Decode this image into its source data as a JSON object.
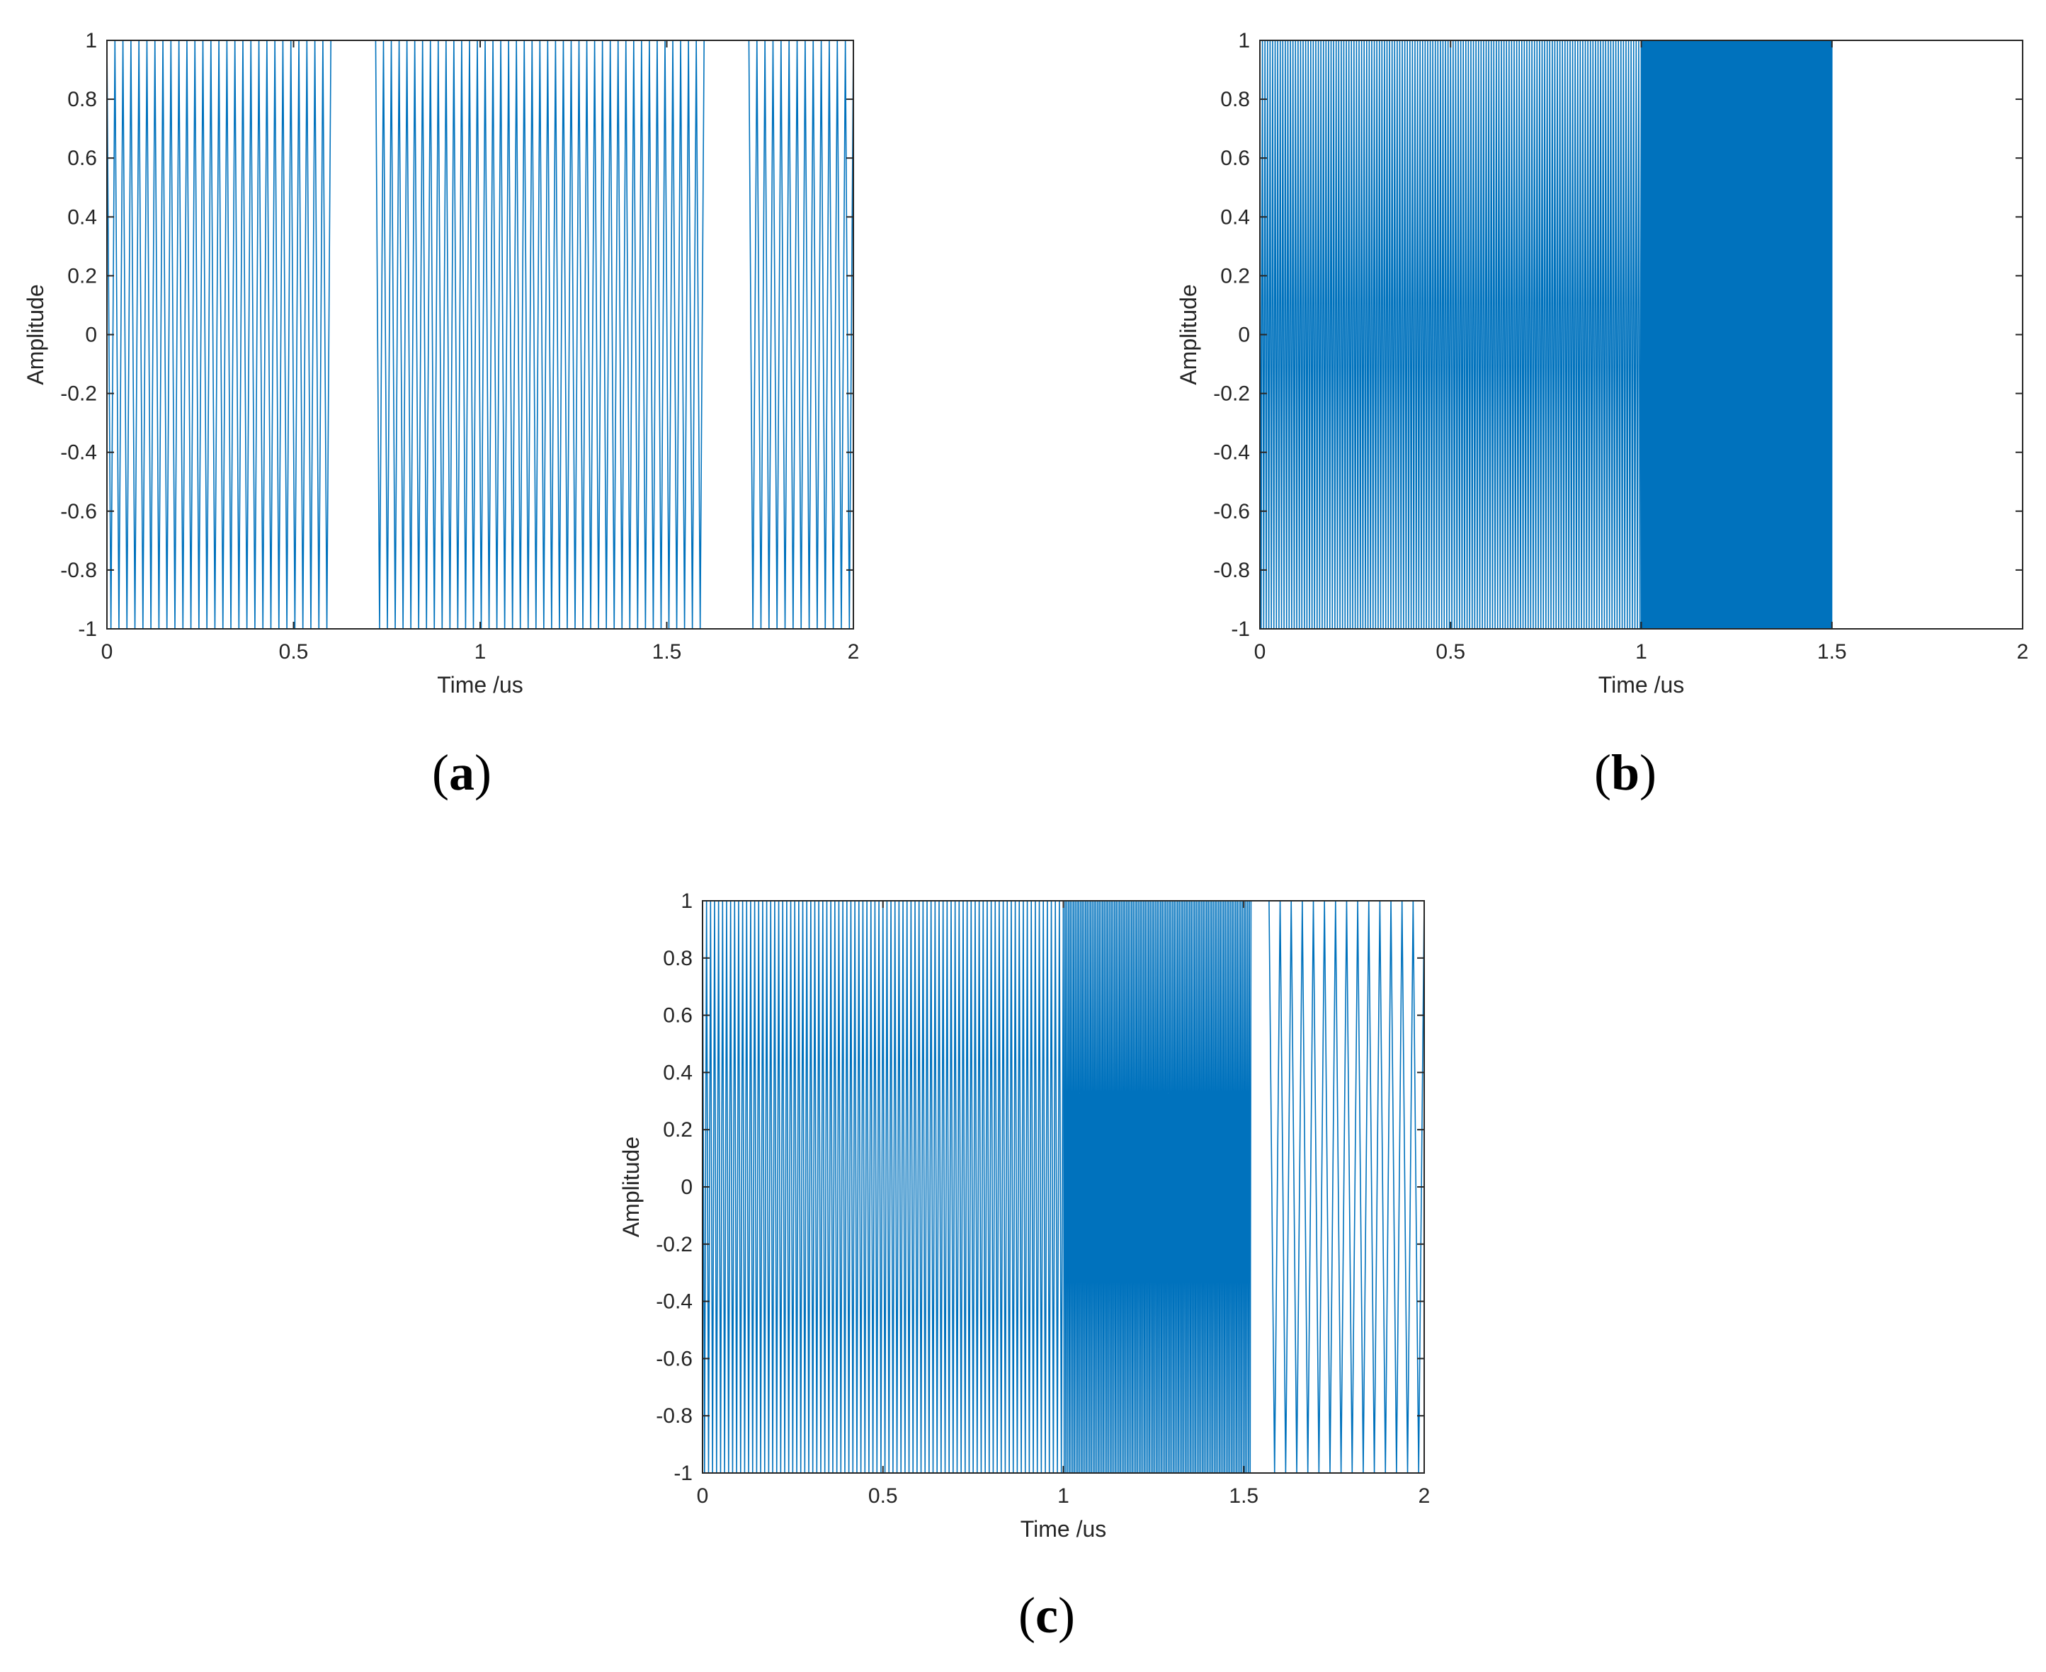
{
  "colors": {
    "signal": "#0072bd",
    "axis": "#262626",
    "background": "#ffffff"
  },
  "chart_data": [
    {
      "id": "a",
      "panel_label": "a",
      "type": "line",
      "xlabel": "Time /us",
      "ylabel": "Amplitude",
      "xlim": [
        0,
        2
      ],
      "ylim": [
        -1,
        1
      ],
      "xticks": [
        "0",
        "0.5",
        "1",
        "1.5",
        "2"
      ],
      "yticks": [
        "-1",
        "-0.8",
        "-0.6",
        "-0.4",
        "-0.2",
        "0",
        "0.2",
        "0.4",
        "0.6",
        "0.8",
        "1"
      ],
      "grid": false,
      "series": [
        {
          "segments": [
            {
              "start": 0.0,
              "end": 0.6,
              "cycles": 28,
              "amplitude": 1.0
            },
            {
              "start": 0.72,
              "end": 1.6,
              "cycles": 42,
              "amplitude": 1.0
            },
            {
              "start": 1.72,
              "end": 2.0,
              "cycles": 13,
              "amplitude": 1.0
            }
          ]
        }
      ]
    },
    {
      "id": "b",
      "panel_label": "b",
      "type": "line",
      "xlabel": "Time /us",
      "ylabel": "Amplitude",
      "xlim": [
        0,
        2
      ],
      "ylim": [
        -1,
        1
      ],
      "xticks": [
        "0",
        "0.5",
        "1",
        "1.5",
        "2"
      ],
      "yticks": [
        "-1",
        "-0.8",
        "-0.6",
        "-0.4",
        "-0.2",
        "0",
        "0.2",
        "0.4",
        "0.6",
        "0.8",
        "1"
      ],
      "grid": false,
      "series": [
        {
          "segments": [
            {
              "start": 0.0,
              "end": 1.0,
              "cycles": 150,
              "amplitude": 1.0
            },
            {
              "start": 1.0,
              "end": 1.5,
              "cycles": 520,
              "amplitude": 1.0
            }
          ]
        }
      ]
    },
    {
      "id": "c",
      "panel_label": "c",
      "type": "line",
      "xlabel": "Time /us",
      "ylabel": "Amplitude",
      "xlim": [
        0,
        2
      ],
      "ylim": [
        -1,
        1
      ],
      "xticks": [
        "0",
        "0.5",
        "1",
        "1.5",
        "2"
      ],
      "yticks": [
        "-1",
        "-0.8",
        "-0.6",
        "-0.4",
        "-0.2",
        "0",
        "0.2",
        "0.4",
        "0.6",
        "0.8",
        "1"
      ],
      "grid": false,
      "series": [
        {
          "segments": [
            {
              "start": 0.0,
              "end": 1.0,
              "cycles": 90,
              "amplitude": 1.0
            },
            {
              "start": 1.0,
              "end": 1.52,
              "cycles": 110,
              "amplitude": 1.0
            },
            {
              "start": 1.57,
              "end": 2.0,
              "cycles": 14,
              "amplitude": 1.0
            }
          ]
        }
      ]
    }
  ]
}
